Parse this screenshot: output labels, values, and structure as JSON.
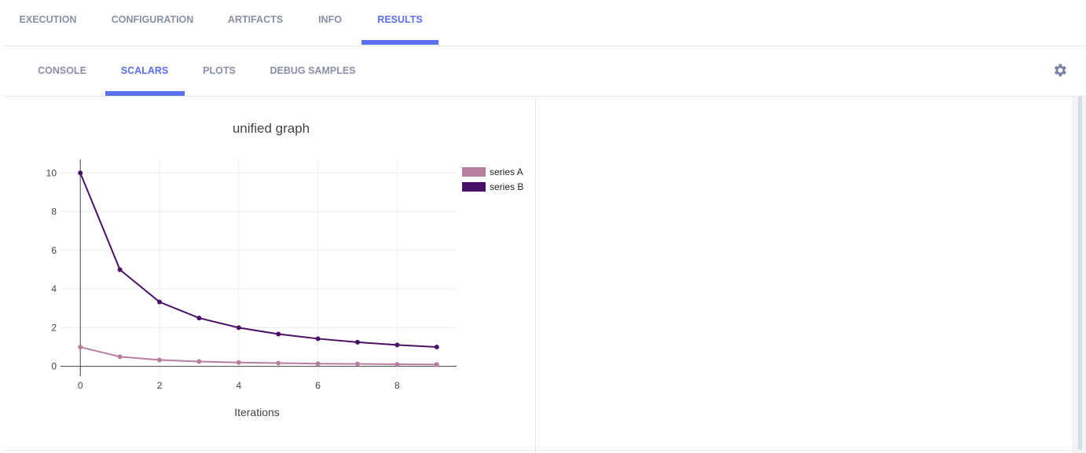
{
  "tabs": [
    "EXECUTION",
    "CONFIGURATION",
    "ARTIFACTS",
    "INFO",
    "RESULTS"
  ],
  "subtabs": [
    "CONSOLE",
    "SCALARS",
    "PLOTS",
    "DEBUG SAMPLES"
  ],
  "chart_data": {
    "type": "line",
    "title": "unified graph",
    "x_label": "Iterations",
    "x": [
      0,
      1,
      2,
      3,
      4,
      5,
      6,
      7,
      8,
      9
    ],
    "series": [
      {
        "name": "series A",
        "color": "#b87ea0",
        "values": [
          1,
          0.5,
          0.33,
          0.25,
          0.2,
          0.17,
          0.14,
          0.13,
          0.11,
          0.1
        ]
      },
      {
        "name": "series B",
        "color": "#4a1068",
        "values": [
          10,
          5,
          3.33,
          2.5,
          2,
          1.67,
          1.43,
          1.25,
          1.11,
          1
        ]
      }
    ],
    "xlim": [
      -0.5,
      9.5
    ],
    "xticks": [
      0,
      2,
      4,
      6,
      8
    ],
    "ylim": [
      -0.5,
      10.7
    ],
    "yticks": [
      0,
      2,
      4,
      6,
      8,
      10
    ],
    "grid": true,
    "legend": "right"
  }
}
